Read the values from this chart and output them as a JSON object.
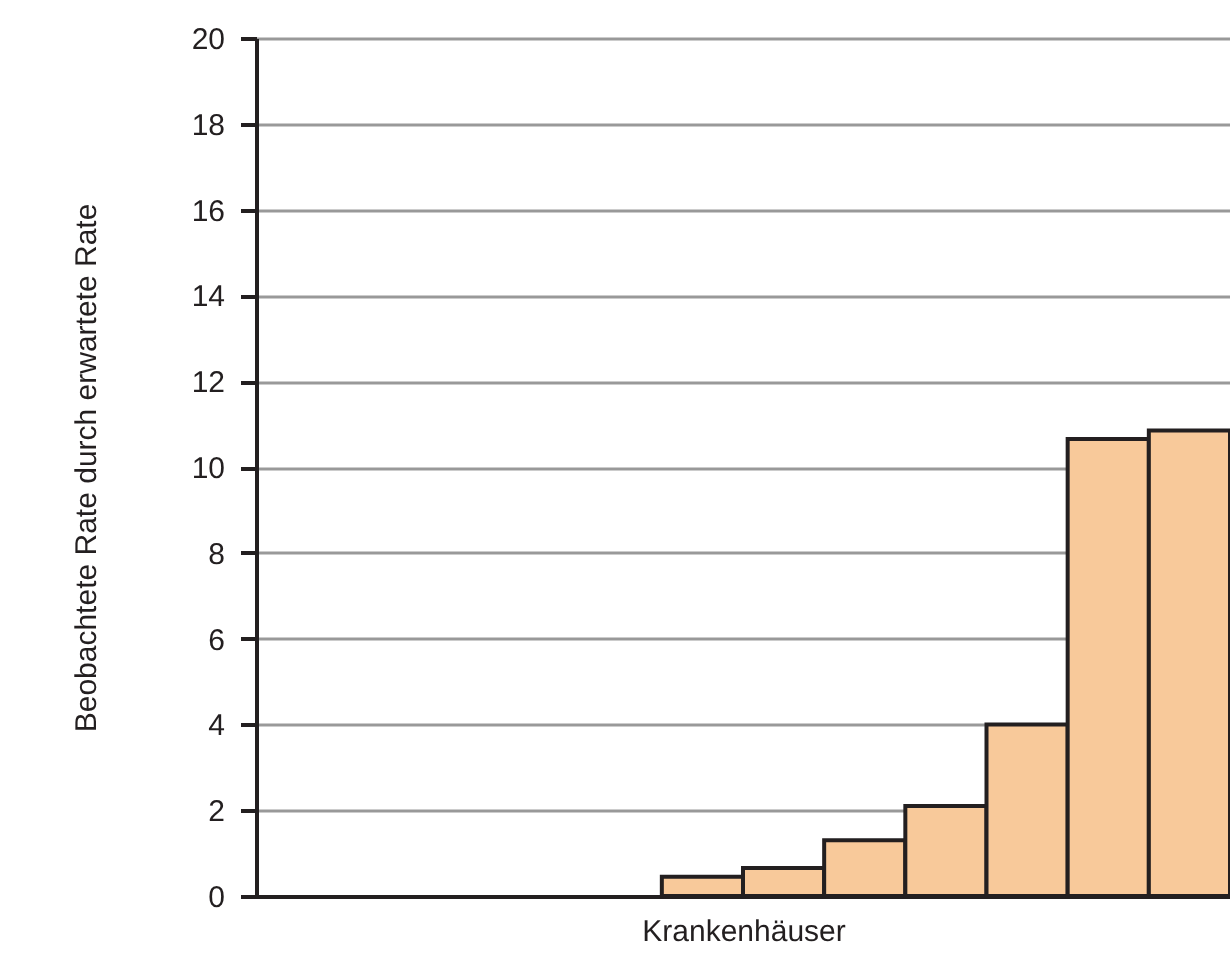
{
  "chart_data": {
    "type": "bar",
    "xlabel": "Krankenhäuser",
    "ylabel": "Beobachtete Rate durch erwartete Rate",
    "categories": [
      null,
      null,
      null,
      null,
      null,
      null,
      null,
      null,
      null,
      null,
      null,
      null
    ],
    "values": [
      null,
      null,
      null,
      null,
      null,
      0.45,
      0.65,
      1.3,
      2.1,
      4.0,
      10.65,
      10.85
    ],
    "color": "#f8c99a",
    "ylim": [
      0,
      20
    ],
    "yticks": [
      0,
      2,
      4,
      6,
      8,
      10,
      12,
      14,
      16,
      18,
      20
    ],
    "grid": "y"
  }
}
